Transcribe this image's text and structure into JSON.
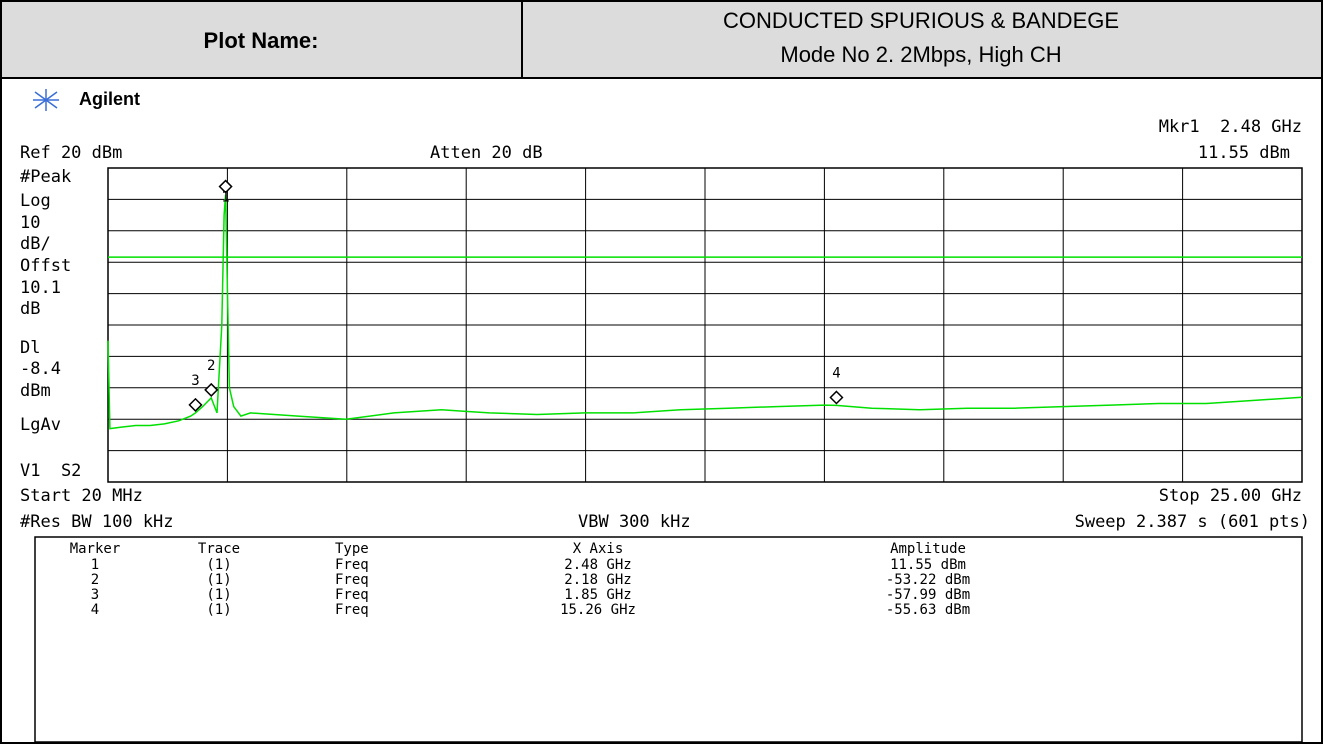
{
  "header": {
    "label": "Plot Name:",
    "title": [
      "CONDUCTED SPURIOUS & BANDEGE",
      "Mode No 2. 2Mbps, High CH"
    ]
  },
  "instrument": {
    "brand": "Agilent",
    "marker_readout": [
      "Mkr1  2.48 GHz",
      "11.55 dBm"
    ],
    "ref": "Ref 20 dBm",
    "atten": "Atten 20 dB",
    "side_labels": [
      "#Peak",
      "Log",
      "10",
      "dB/",
      "Offst",
      "10.1",
      "dB",
      "Dl",
      "-8.4",
      "dBm",
      "LgAv",
      "V1  S2"
    ],
    "start": "Start 20 MHz",
    "stop": "Stop 25.00 GHz",
    "res_bw": "#Res BW 100 kHz",
    "vbw": "VBW 300 kHz",
    "sweep": "Sweep 2.387 s (601 pts)"
  },
  "chart_data": {
    "type": "line",
    "color": "#00e000",
    "x": [
      0.02,
      0.06,
      0.3,
      0.6,
      0.9,
      1.2,
      1.5,
      1.75,
      1.85,
      2.0,
      2.18,
      2.3,
      2.4,
      2.45,
      2.48,
      2.52,
      2.56,
      2.65,
      2.8,
      3.0,
      3.5,
      4,
      5,
      6,
      7,
      7.5,
      8,
      9,
      10,
      11,
      12,
      13,
      14,
      15,
      15.26,
      16,
      17,
      18,
      19,
      20,
      21,
      22,
      23,
      24,
      25
    ],
    "values": [
      -35,
      -63,
      -62.5,
      -62,
      -62,
      -61.5,
      -60.5,
      -59,
      -58,
      -56,
      -53.2,
      -58,
      -30,
      5,
      11.55,
      -20,
      -50,
      -56,
      -59,
      -58,
      -58.5,
      -59,
      -60,
      -58,
      -57,
      -57.5,
      -58,
      -58.5,
      -58,
      -58,
      -57,
      -56.5,
      -56,
      -55.5,
      -55.6,
      -56.5,
      -57,
      -56.5,
      -56.5,
      -56,
      -55.5,
      -55,
      -55,
      -54,
      -53
    ],
    "xlim": [
      0.02,
      25
    ],
    "ylim": [
      -80,
      20
    ],
    "xticks": [
      0.02,
      2.518,
      5.016,
      7.514,
      10.012,
      12.51,
      15.008,
      17.506,
      20.004,
      22.502,
      25
    ],
    "yticks": [
      20,
      10,
      0,
      -10,
      -20,
      -30,
      -40,
      -50,
      -60,
      -70,
      -80
    ],
    "grid": true,
    "display_line": -8.4,
    "markers": {
      "names": [
        "1",
        "2",
        "3",
        "4"
      ],
      "x": [
        2.48,
        2.18,
        1.85,
        15.26
      ],
      "values": [
        11.55,
        -53.22,
        -57.99,
        -55.63
      ]
    }
  },
  "marker_table": {
    "columns": [
      "Marker",
      "Trace",
      "Type",
      "X Axis",
      "Amplitude"
    ],
    "rows": [
      [
        "1",
        "(1)",
        "Freq",
        "2.48 GHz",
        "11.55 dBm"
      ],
      [
        "2",
        "(1)",
        "Freq",
        "2.18 GHz",
        "-53.22 dBm"
      ],
      [
        "3",
        "(1)",
        "Freq",
        "1.85 GHz",
        "-57.99 dBm"
      ],
      [
        "4",
        "(1)",
        "Freq",
        "15.26 GHz",
        "-55.63 dBm"
      ]
    ]
  }
}
